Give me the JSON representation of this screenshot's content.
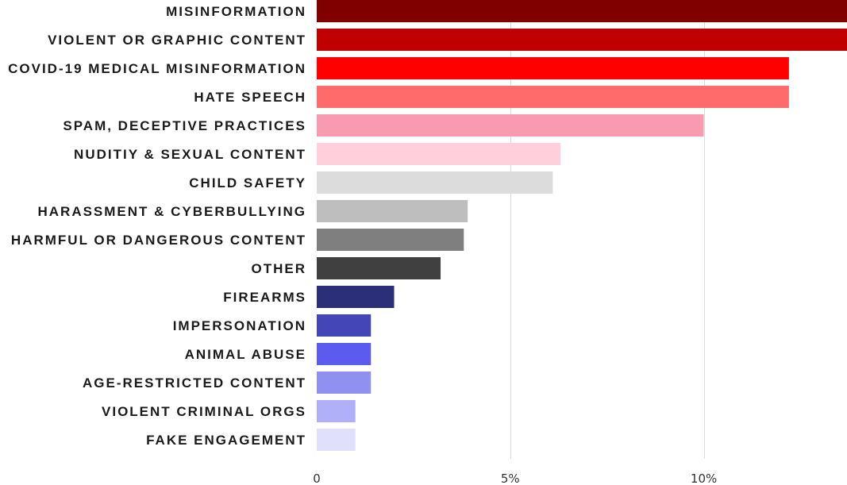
{
  "chart_data": {
    "type": "bar",
    "orientation": "horizontal",
    "categories": [
      "MISINFORMATION",
      "VIOLENT OR GRAPHIC CONTENT",
      "COVID-19 MEDICAL MISINFORMATION",
      "HATE SPEECH",
      "SPAM, DECEPTIVE PRACTICES",
      "NUDITIY & SEXUAL CONTENT",
      "CHILD SAFETY",
      "HARASSMENT & CYBERBULLYING",
      "HARMFUL OR DANGEROUS CONTENT",
      "OTHER",
      "FIREARMS",
      "IMPERSONATION",
      "ANIMAL ABUSE",
      "AGE-RESTRICTED CONTENT",
      "VIOLENT CRIMINAL ORGS",
      "FAKE ENGAGEMENT"
    ],
    "values": [
      13.8,
      13.8,
      12.2,
      12.2,
      10.0,
      6.3,
      6.1,
      3.9,
      3.8,
      3.2,
      2.0,
      1.4,
      1.4,
      1.4,
      1.0,
      1.0
    ],
    "colors": [
      "#800000",
      "#c00000",
      "#ff0000",
      "#ff6b6b",
      "#f99bb0",
      "#ffd0dc",
      "#dcdcdc",
      "#bebebe",
      "#7f7f7f",
      "#404040",
      "#2b2f7a",
      "#4446b8",
      "#5b5bf0",
      "#9090f0",
      "#b0b0f8",
      "#e0e0fa"
    ],
    "x_ticks": [
      0,
      5,
      10
    ],
    "x_tick_labels": [
      "0",
      "5%",
      "10%"
    ],
    "xlim": [
      0,
      13.7
    ],
    "grid": true,
    "title": "",
    "xlabel": "",
    "ylabel": ""
  }
}
